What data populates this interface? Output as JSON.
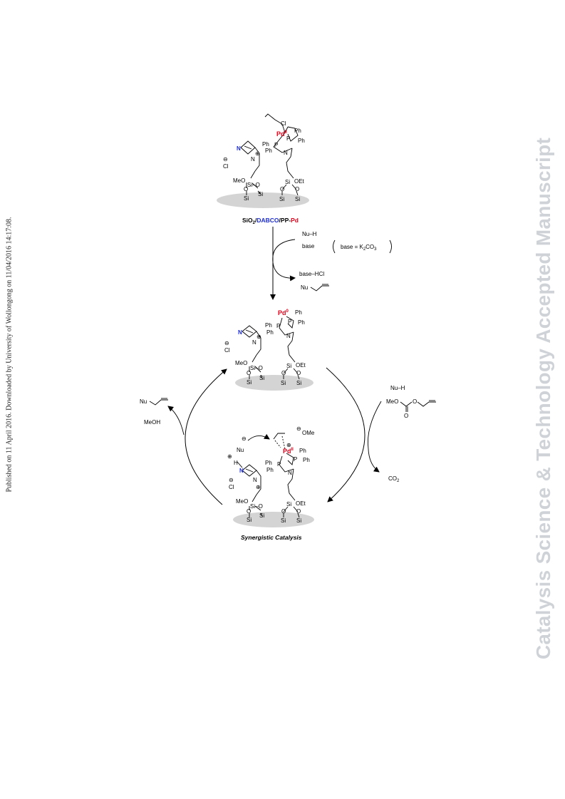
{
  "side_text": "Published on 11 April 2016. Downloaded by University of Wollongong on 11/04/2016 14:17:08.",
  "watermark": "Catalysis Science & Technology Accepted Manuscript",
  "catalyst_label": {
    "a": "SiO",
    "sub": "2",
    "b": "/",
    "c": "DABCO",
    "d": "/PP-",
    "e": "Pd"
  },
  "colors": {
    "pd": "#e0001a",
    "dabco_n": "#1a2bd6",
    "support": "#d4d4d4",
    "line": "#000000"
  },
  "step1": {
    "nu_h": "Nu–H",
    "base": "base",
    "base_note": "base = K",
    "base_note_sub1": "2",
    "base_note_mid": "CO",
    "base_note_sub2": "3",
    "byproduct": "base–HCl",
    "product": "Nu"
  },
  "right_arc": {
    "nu_h": "Nu–H",
    "meo": "MeO",
    "o": "O",
    "co2": "CO",
    "co2_sub": "2"
  },
  "left_arc": {
    "product": "Nu",
    "meoh": "MeOH"
  },
  "complex": {
    "pd2": "Pd",
    "pd2_sup": "II",
    "pd0": "Pd",
    "pd0_sup": "0",
    "cl": "Cl",
    "ph": "Ph",
    "p": "P",
    "n": "N",
    "meo": "MeO",
    "o": "O",
    "si": "Si",
    "oet": "OEt",
    "si_o": "Si–O",
    "plus": "⊕",
    "minus": "⊖",
    "h": "H",
    "nu": "Nu",
    "ome": "OMe"
  },
  "synergistic_label": "Synergistic Catalysis"
}
